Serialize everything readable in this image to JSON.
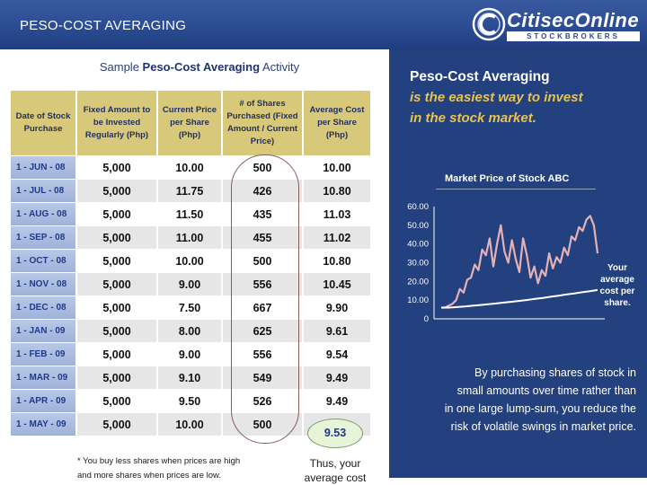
{
  "header": {
    "title": "PESO-COST AVERAGING",
    "logo_name": "CitisecOnline",
    "logo_tagline": "STOCKBROKERS",
    "background_color": "#2b4c93"
  },
  "table_section": {
    "title_prefix": "Sample ",
    "title_bold": "Peso-Cost Averaging",
    "title_suffix": " Activity",
    "headers": [
      "Date of Stock Purchase",
      "Fixed Amount to be Invested Regularly (Php)",
      "Current Price per Share (Php)",
      "# of Shares Purchased (Fixed Amount / Current Price)",
      "Average Cost per Share (Php)"
    ],
    "rows": [
      {
        "date": "1 - JUN - 08",
        "amount": "5,000",
        "price": "10.00",
        "shares": "500",
        "avg": "10.00"
      },
      {
        "date": "1 - JUL - 08",
        "amount": "5,000",
        "price": "11.75",
        "shares": "426",
        "avg": "10.80"
      },
      {
        "date": "1 - AUG - 08",
        "amount": "5,000",
        "price": "11.50",
        "shares": "435",
        "avg": "11.03"
      },
      {
        "date": "1 - SEP - 08",
        "amount": "5,000",
        "price": "11.00",
        "shares": "455",
        "avg": "11.02"
      },
      {
        "date": "1 - OCT - 08",
        "amount": "5,000",
        "price": "10.00",
        "shares": "500",
        "avg": "10.80"
      },
      {
        "date": "1 - NOV - 08",
        "amount": "5,000",
        "price": "9.00",
        "shares": "556",
        "avg": "10.45"
      },
      {
        "date": "1 - DEC - 08",
        "amount": "5,000",
        "price": "7.50",
        "shares": "667",
        "avg": "9.90"
      },
      {
        "date": "1 - JAN - 09",
        "amount": "5,000",
        "price": "8.00",
        "shares": "625",
        "avg": "9.61"
      },
      {
        "date": "1 - FEB - 09",
        "amount": "5,000",
        "price": "9.00",
        "shares": "556",
        "avg": "9.54"
      },
      {
        "date": "1 - MAR - 09",
        "amount": "5,000",
        "price": "9.10",
        "shares": "549",
        "avg": "9.49"
      },
      {
        "date": "1 - APR - 09",
        "amount": "5,000",
        "price": "9.50",
        "shares": "526",
        "avg": "9.49"
      },
      {
        "date": "1 - MAY - 09",
        "amount": "5,000",
        "price": "10.00",
        "shares": "500",
        "avg": "9.53"
      }
    ],
    "footnote_line1": "* You buy less shares when prices are high",
    "footnote_line2": "and more shares when prices are low.",
    "thus_line1": "Thus, your",
    "thus_line2": "average cost"
  },
  "panel": {
    "title": "Peso-Cost Averaging",
    "subtitle_line1": "is the easiest way to invest",
    "subtitle_line2": "in the stock market.",
    "chart_title": "Market Price of Stock ABC",
    "your_avg_line1": "Your",
    "your_avg_line2": "average",
    "your_avg_line3": "cost per",
    "your_avg_line4": "share.",
    "body_line1": "By purchasing shares of stock in",
    "body_line2": "small amounts over time  rather than",
    "body_line3": "in one large lump-sum, you reduce the",
    "body_line4": "risk of volatile swings in market price.",
    "background_color": "#23417f",
    "accent_color": "#e9c34e"
  },
  "chart_data": {
    "type": "line",
    "title": "Market Price of Stock ABC",
    "ylim": [
      0,
      60
    ],
    "yticks": [
      "60.00",
      "50.00",
      "40.00",
      "30.00",
      "20.00",
      "10.00",
      "0"
    ],
    "series": [
      {
        "name": "Market Price",
        "values": [
          6,
          6,
          7,
          8,
          10,
          16,
          14,
          21,
          22,
          29,
          26,
          37,
          34,
          43,
          28,
          40,
          50,
          36,
          30,
          42,
          32,
          25,
          43,
          34,
          22,
          28,
          19,
          26,
          23,
          35,
          27,
          33,
          30,
          38,
          34,
          44,
          42,
          49,
          47,
          53,
          55,
          50,
          35
        ]
      },
      {
        "name": "Average Cost",
        "values": [
          6,
          6,
          6.3,
          6.6,
          7,
          7.4,
          7.8,
          8.2,
          8.7,
          9.1,
          9.6,
          10.1,
          10.7,
          11.2,
          11.8,
          12.4,
          13,
          13.6,
          14.2,
          14.8,
          15.4
        ]
      }
    ]
  }
}
